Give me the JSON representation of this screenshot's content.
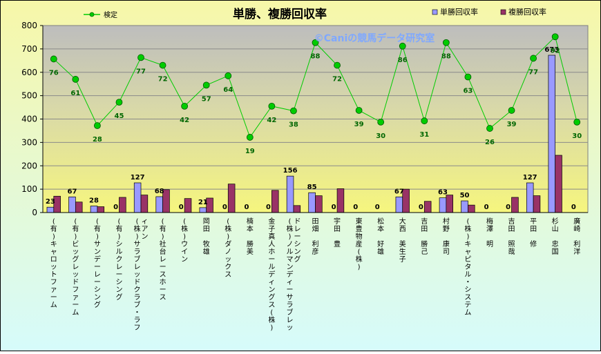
{
  "chart_data": {
    "type": "bar",
    "title": "単勝、複勝回収率",
    "watermark": "©Caniの競馬データ研究室",
    "ylim": [
      0,
      800
    ],
    "yticks": [
      0,
      100,
      200,
      300,
      400,
      500,
      600,
      700,
      800
    ],
    "legend": {
      "position": "top"
    },
    "categories": [
      "(有)キャロットファーム",
      "(有)ビッグレッドファーム",
      "(有)サンデーレーシング",
      "(有)シルクレーシング",
      "(株)サラブレッドクラブ・ラフィアン",
      "(有)社台レースホース",
      "(株)ウイン",
      "岡田　牧雄",
      "(株)ダノックス",
      "楠本　勝美",
      "金子真人ホールディングス(株)",
      "(株)ノルマンディーサラブレッドレーシング",
      "田畑　利彦",
      "宇田　豊",
      "東豊物産(株)",
      "松本　好雄",
      "大西　美生子",
      "吉田　勝己",
      "村野　康司",
      "(株)キャピタル・システム",
      "梅澤　明",
      "吉田　照哉",
      "平田　修",
      "杉山　忠国",
      "廣崎　利洋"
    ],
    "series": [
      {
        "name": "単勝回収率",
        "kind": "bar",
        "color": "#9999ff",
        "values": [
          23,
          67,
          28,
          0,
          127,
          68,
          0,
          21,
          0,
          0,
          0,
          156,
          85,
          0,
          0,
          0,
          67,
          0,
          63,
          50,
          0,
          0,
          127,
          673,
          0
        ]
      },
      {
        "name": "複勝回収率",
        "kind": "bar",
        "color": "#993366",
        "values": [
          70,
          45,
          25,
          65,
          75,
          98,
          60,
          62,
          122,
          0,
          95,
          30,
          72,
          102,
          0,
          0,
          100,
          48,
          75,
          32,
          0,
          65,
          72,
          245,
          0
        ]
      },
      {
        "name": "検定",
        "kind": "line",
        "color": "#00cc00",
        "values": [
          76,
          61,
          28,
          45,
          77,
          72,
          42,
          57,
          64,
          19,
          42,
          38,
          88,
          72,
          39,
          30,
          86,
          31,
          88,
          63,
          26,
          39,
          77,
          92,
          30
        ],
        "plot_values": [
          657,
          570,
          372,
          472,
          663,
          630,
          455,
          545,
          585,
          322,
          455,
          435,
          727,
          630,
          437,
          387,
          712,
          392,
          727,
          580,
          360,
          437,
          660,
          752,
          387
        ]
      }
    ]
  }
}
